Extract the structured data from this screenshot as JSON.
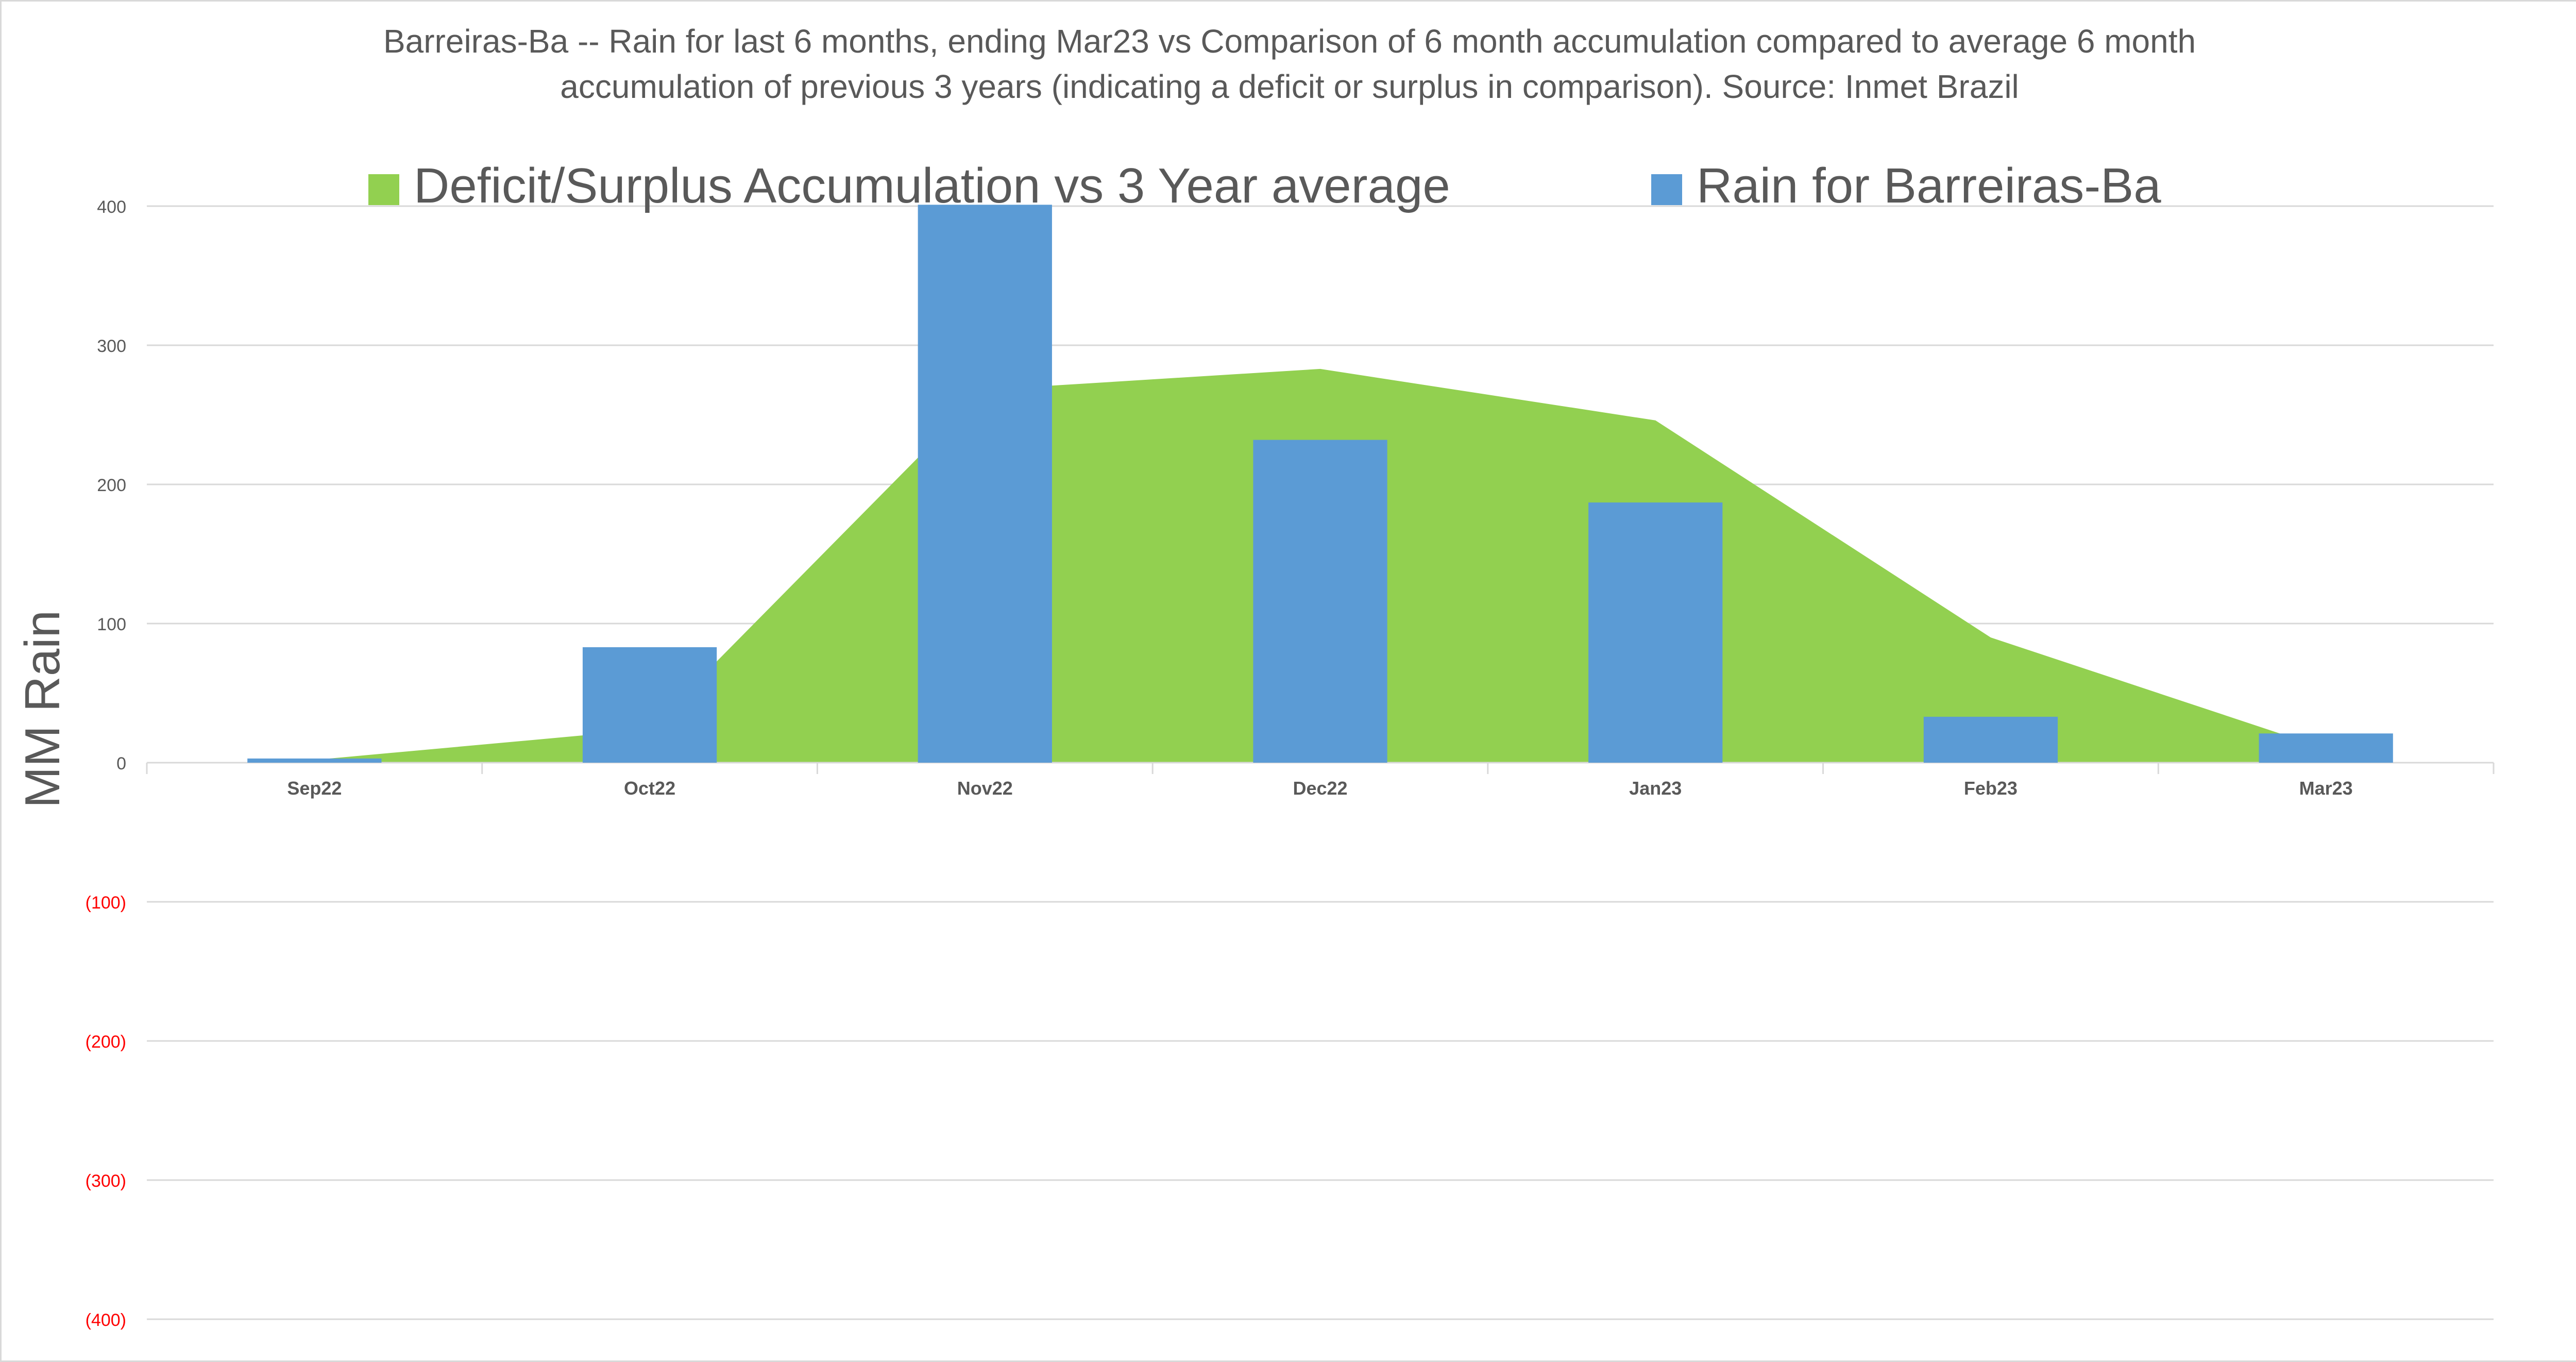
{
  "chart_data": {
    "type": "bar",
    "title_lines": [
      "Barreiras-Ba -- Rain for last 6 months, ending Mar23  vs Comparison of 6 month accumulation compared to average 6 month",
      "accumulation of previous 3 years  (indicating a deficit or surplus in comparison). Source: Inmet Brazil"
    ],
    "ylabel": "MM Rain",
    "xlabel": "",
    "categories": [
      "Sep22",
      "Oct22",
      "Nov22",
      "Dec22",
      "Jan23",
      "Feb23",
      "Mar23"
    ],
    "series": [
      {
        "name": "Deficit/Surplus Accumulation vs 3 Year average",
        "type": "area",
        "color": "#92d050",
        "values": [
          2,
          24,
          268,
          283,
          246,
          90,
          10
        ]
      },
      {
        "name": "Rain for Barreiras-Ba",
        "type": "bar",
        "color": "#5b9bd5",
        "values": [
          3,
          83,
          401,
          232,
          187,
          33,
          21
        ]
      }
    ],
    "ylim": [
      -400,
      400
    ],
    "yticks": [
      400,
      300,
      200,
      100,
      0,
      -100,
      -200,
      -300,
      -400
    ],
    "ytick_labels": [
      "400",
      "300",
      "200",
      "100",
      "0",
      "(100)",
      "(200)",
      "(300)",
      "(400)"
    ],
    "negative_tick_color": "#ff0000",
    "tick_color": "#595959",
    "grid": true,
    "legend_position": "top"
  }
}
